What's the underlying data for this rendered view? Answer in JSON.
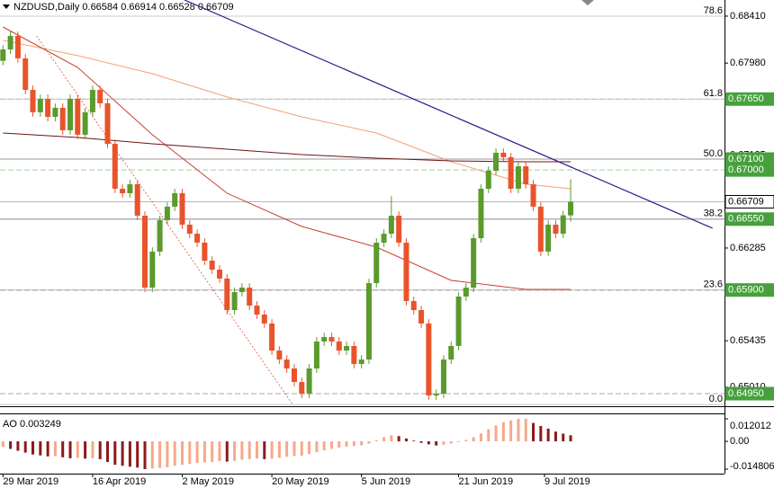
{
  "chart_data": {
    "type": "candlestick",
    "title": "NZDUSD,Daily 0.66584 0.66914 0.66528 0.66709",
    "xlim": [
      -0.4,
      96.6
    ],
    "xticks": [
      {
        "value": 0,
        "label": "29 Mar 2019"
      },
      {
        "value": 12,
        "label": "16 Apr 2019"
      },
      {
        "value": 24,
        "label": "2 May 2019"
      },
      {
        "value": 36,
        "label": "20 May 2019"
      },
      {
        "value": 48,
        "label": "5 Jun 2019"
      },
      {
        "value": 61,
        "label": "21 Jun 2019"
      },
      {
        "value": 72.5,
        "label": "9 Jul 2019"
      }
    ],
    "ylim": [
      0.64835,
      0.68558
    ],
    "yticks": [
      {
        "value": 0.6841,
        "label": "0.68410"
      },
      {
        "value": 0.6798,
        "label": "0.67980"
      },
      {
        "value": 0.67135,
        "label": "0.67135"
      },
      {
        "value": 0.66285,
        "label": "0.66285"
      },
      {
        "value": 0.65435,
        "label": "0.65435"
      },
      {
        "value": 0.6501,
        "label": "0.65010"
      }
    ],
    "colors": {
      "up": "#5b9a2d",
      "down": "#e9532b"
    },
    "open": [
      0.68,
      0.68105,
      0.68229,
      0.68023,
      0.67734,
      0.67529,
      0.67652,
      0.67487,
      0.6757,
      0.67364,
      0.67652,
      0.67323,
      0.67529,
      0.67734,
      0.67611,
      0.6724,
      0.66828,
      0.66787,
      0.66869,
      0.66581,
      0.65922,
      0.66252,
      0.6654,
      0.66664,
      0.66787,
      0.66499,
      0.66416,
      0.66334,
      0.66169,
      0.66087,
      0.66005,
      0.65716,
      0.65881,
      0.65922,
      0.65757,
      0.65675,
      0.65593,
      0.65345,
      0.65263,
      0.65181,
      0.65057,
      0.6495,
      0.65181,
      0.65428,
      0.65469,
      0.65428,
      0.65345,
      0.65387,
      0.65222,
      0.65263,
      0.65963,
      0.66334,
      0.66416,
      0.66581,
      0.66334,
      0.65799,
      0.65716,
      0.65593,
      0.64934,
      0.6495,
      0.65263,
      0.65387,
      0.6584,
      0.65922,
      0.66375,
      0.66828,
      0.66993,
      0.67158,
      0.67117,
      0.66828,
      0.67034,
      0.66869,
      0.66664,
      0.66252,
      0.66499,
      0.66416,
      0.66584
    ],
    "high": [
      0.68145,
      0.68269,
      0.68269,
      0.68063,
      0.67774,
      0.67692,
      0.67692,
      0.6761,
      0.6761,
      0.67692,
      0.67692,
      0.67569,
      0.67774,
      0.67774,
      0.67651,
      0.6728,
      0.66868,
      0.66909,
      0.66909,
      0.66621,
      0.66292,
      0.6658,
      0.66704,
      0.66827,
      0.66827,
      0.66539,
      0.66456,
      0.66374,
      0.66209,
      0.66127,
      0.66045,
      0.65921,
      0.65962,
      0.65962,
      0.65797,
      0.65715,
      0.65633,
      0.65385,
      0.65303,
      0.65221,
      0.65097,
      0.65221,
      0.65468,
      0.65509,
      0.65509,
      0.65468,
      0.65427,
      0.65427,
      0.65303,
      0.66003,
      0.66374,
      0.66456,
      0.6676,
      0.66621,
      0.66374,
      0.65839,
      0.65756,
      0.65633,
      0.6499,
      0.65303,
      0.65427,
      0.6588,
      0.65962,
      0.66415,
      0.66868,
      0.67033,
      0.67198,
      0.67198,
      0.67157,
      0.67074,
      0.67074,
      0.66909,
      0.66704,
      0.66539,
      0.66539,
      0.66624,
      0.66914
    ],
    "low": [
      0.6796,
      0.68065,
      0.67983,
      0.67694,
      0.67489,
      0.67489,
      0.67447,
      0.67447,
      0.67324,
      0.67324,
      0.67283,
      0.67283,
      0.67489,
      0.67571,
      0.672,
      0.66788,
      0.66747,
      0.66747,
      0.66541,
      0.65882,
      0.65882,
      0.66212,
      0.665,
      0.66624,
      0.66459,
      0.66376,
      0.66294,
      0.66129,
      0.66047,
      0.65965,
      0.65676,
      0.65676,
      0.65841,
      0.65717,
      0.65635,
      0.65553,
      0.65305,
      0.65223,
      0.65141,
      0.65017,
      0.6491,
      0.6491,
      0.65141,
      0.65388,
      0.65388,
      0.65305,
      0.65305,
      0.65182,
      0.65182,
      0.65223,
      0.65923,
      0.66294,
      0.66376,
      0.66294,
      0.65759,
      0.65676,
      0.65553,
      0.64894,
      0.64894,
      0.6491,
      0.65223,
      0.65347,
      0.658,
      0.65882,
      0.66335,
      0.66788,
      0.66953,
      0.67077,
      0.66788,
      0.66788,
      0.66829,
      0.66624,
      0.66212,
      0.66212,
      0.66376,
      0.66376,
      0.66528
    ],
    "close": [
      0.68105,
      0.68229,
      0.68023,
      0.67734,
      0.67529,
      0.67652,
      0.67487,
      0.6757,
      0.67364,
      0.67652,
      0.67323,
      0.67529,
      0.67734,
      0.67611,
      0.6724,
      0.66828,
      0.66787,
      0.66869,
      0.66581,
      0.65922,
      0.66252,
      0.6654,
      0.66664,
      0.66787,
      0.66499,
      0.66416,
      0.66334,
      0.66169,
      0.66087,
      0.66005,
      0.65716,
      0.65881,
      0.65922,
      0.65757,
      0.65675,
      0.65593,
      0.65345,
      0.65263,
      0.65181,
      0.65057,
      0.6495,
      0.65181,
      0.65428,
      0.65469,
      0.65428,
      0.65345,
      0.65387,
      0.65222,
      0.65263,
      0.65963,
      0.66334,
      0.66416,
      0.66581,
      0.66334,
      0.65799,
      0.65716,
      0.65593,
      0.64934,
      0.6495,
      0.65263,
      0.65387,
      0.6584,
      0.65922,
      0.66375,
      0.66828,
      0.66993,
      0.67158,
      0.67117,
      0.66828,
      0.67034,
      0.66869,
      0.66664,
      0.66252,
      0.66499,
      0.66416,
      0.66584,
      0.66709
    ],
    "moving_averages": [
      {
        "color": "#f4a070",
        "x": [
          0,
          10,
          20,
          30,
          40,
          50,
          60,
          70,
          76
        ],
        "values": [
          0.68188,
          0.68048,
          0.67883,
          0.67669,
          0.67487,
          0.67339,
          0.67075,
          0.6687,
          0.66828
        ]
      },
      {
        "color": "#c8402e",
        "x": [
          0,
          10,
          20,
          30,
          40,
          50,
          60,
          70,
          76
        ],
        "values": [
          0.68311,
          0.6794,
          0.67323,
          0.66787,
          0.66482,
          0.66293,
          0.65988,
          0.65906,
          0.65906
        ]
      },
      {
        "color": "#6b1414",
        "x": [
          0,
          10,
          20,
          30,
          40,
          50,
          60,
          70,
          76
        ],
        "values": [
          0.67339,
          0.67298,
          0.6724,
          0.67191,
          0.67141,
          0.67108,
          0.67084,
          0.67075,
          0.67075
        ]
      }
    ],
    "trendlines": [
      {
        "color": "#2e1a8a",
        "dashed": false,
        "x": [
          24.3,
          95
        ],
        "values": [
          0.68558,
          0.66466
        ]
      },
      {
        "color": "#e0523a",
        "dashed": true,
        "x": [
          4.5,
          38.8
        ],
        "values": [
          0.68229,
          0.64851
        ]
      }
    ],
    "levels": [
      {
        "value": 0.6765,
        "label": "0.67650",
        "color": "#46a03c",
        "line_color": "#9fc79a",
        "dashed": true
      },
      {
        "value": 0.671,
        "label": "0.67100",
        "color": "#46a03c",
        "line_color": "#4a2a3a",
        "dashed": false
      },
      {
        "value": 0.67,
        "label": "0.67000",
        "color": "#46a03c",
        "line_color": "#9fd49a",
        "dashed": true
      },
      {
        "value": 0.66709,
        "label": "0.66709",
        "color": "#ffffff",
        "line_color": "#b8b8b8",
        "dashed": false
      },
      {
        "value": 0.6655,
        "label": "0.66550",
        "color": "#46a03c",
        "line_color": "#5a3a7a",
        "dashed": false
      },
      {
        "value": 0.659,
        "label": "0.65900",
        "color": "#46a03c",
        "line_color": "#5a3a5a",
        "dashed": true
      },
      {
        "value": 0.6495,
        "label": "0.64950",
        "color": "#46a03c",
        "line_color": "#a8a8a8",
        "dashed": true
      }
    ],
    "fib_levels": [
      {
        "label": "78.6",
        "value": 0.6841
      },
      {
        "label": "61.8",
        "value": 0.6765
      },
      {
        "label": "50.0",
        "value": 0.671
      },
      {
        "label": "38.2",
        "value": 0.6655
      },
      {
        "label": "23.6",
        "value": 0.659
      },
      {
        "label": "0.0",
        "value": 0.6485
      }
    ],
    "indicator": {
      "type": "bar",
      "title": "AO 0.003249",
      "ylim": [
        -0.014806,
        0.012012
      ],
      "yticks": [
        0.012012,
        {
          "value": 0,
          "label": "0.00"
        },
        -0.014806
      ],
      "colors": {
        "up": "#f5a88a",
        "down": "#8b1a1a"
      },
      "values": [
        -0.003,
        -0.004,
        -0.005,
        -0.006,
        -0.007,
        -0.0075,
        -0.008,
        -0.0078,
        -0.0085,
        -0.009,
        -0.0088,
        -0.0092,
        -0.009,
        -0.0095,
        -0.011,
        -0.0125,
        -0.013,
        -0.0135,
        -0.014,
        -0.0148,
        -0.0145,
        -0.0142,
        -0.0138,
        -0.013,
        -0.0125,
        -0.012,
        -0.0115,
        -0.0112,
        -0.011,
        -0.0105,
        -0.0108,
        -0.0104,
        -0.0098,
        -0.0094,
        -0.0092,
        -0.0095,
        -0.0093,
        -0.0088,
        -0.0082,
        -0.0078,
        -0.0076,
        -0.0068,
        -0.0058,
        -0.0048,
        -0.004,
        -0.0034,
        -0.0028,
        -0.0025,
        -0.0021,
        -0.0012,
        0.0005,
        0.0022,
        0.0032,
        0.0028,
        0.0015,
        0.0004,
        -0.0008,
        -0.0016,
        -0.0022,
        -0.0018,
        -0.0012,
        -0.0004,
        0.0008,
        0.0022,
        0.0042,
        0.0065,
        0.0085,
        0.0102,
        0.0112,
        0.012,
        0.012012,
        0.0098,
        0.0082,
        0.0068,
        0.0052,
        0.0041,
        0.003249
      ]
    }
  }
}
